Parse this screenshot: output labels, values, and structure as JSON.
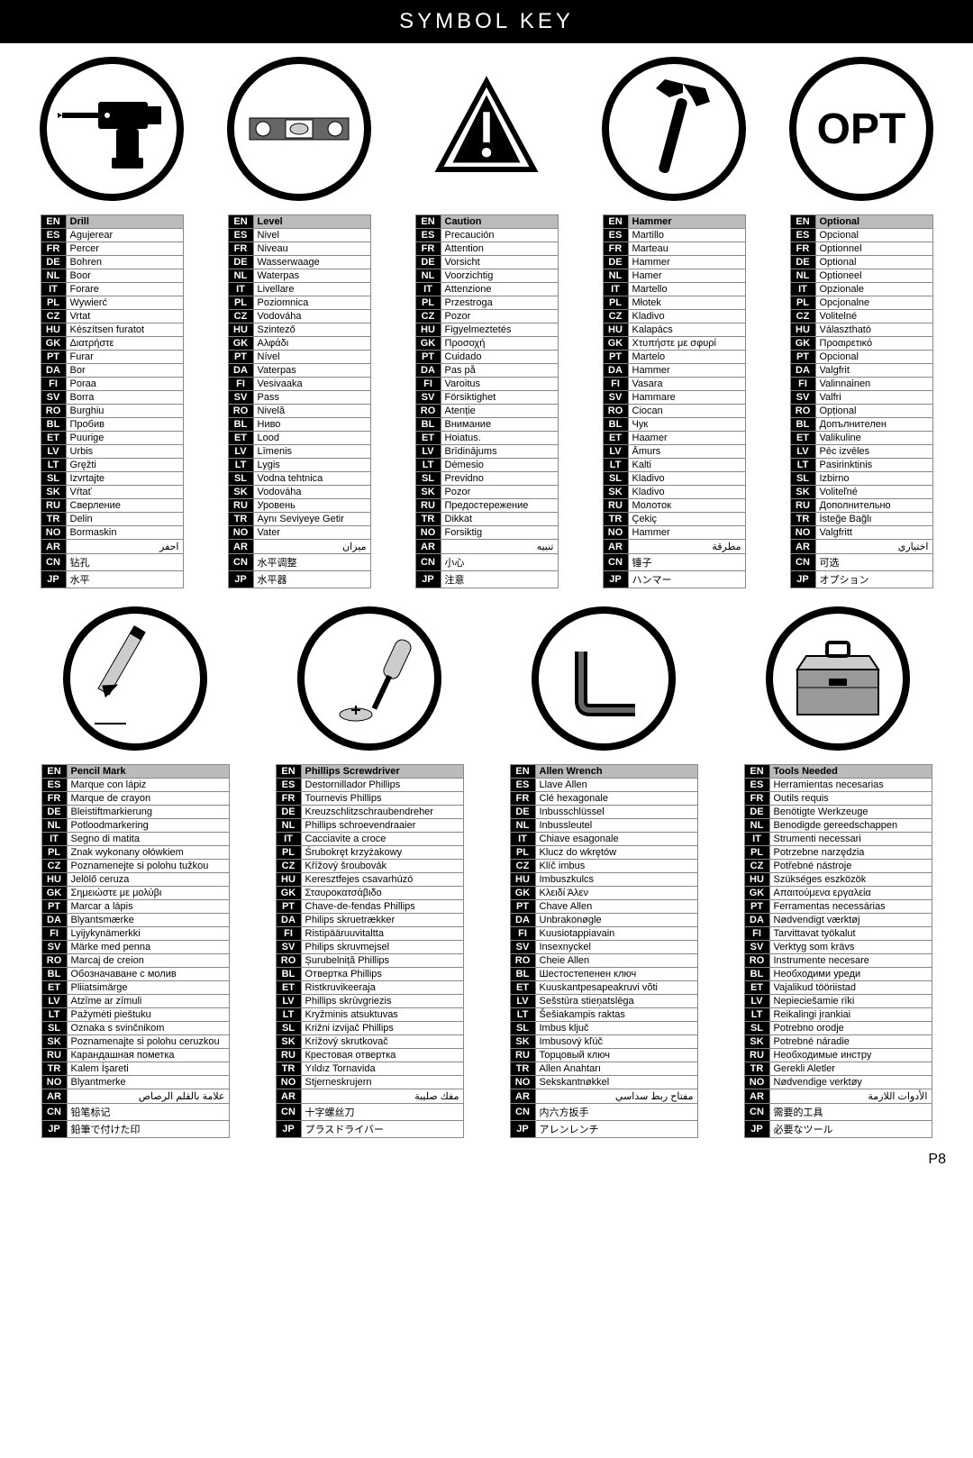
{
  "title": "SYMBOL KEY",
  "footer": "P8",
  "langs": [
    "EN",
    "ES",
    "FR",
    "DE",
    "NL",
    "IT",
    "PL",
    "CZ",
    "HU",
    "GK",
    "PT",
    "DA",
    "FI",
    "SV",
    "RO",
    "BL",
    "ET",
    "LV",
    "LT",
    "SL",
    "SK",
    "RU",
    "TR",
    "NO",
    "AR",
    "CN",
    "JP"
  ],
  "row1": [
    {
      "icon": "drill",
      "vals": [
        "Drill",
        "Agujerear",
        "Percer",
        "Bohren",
        "Boor",
        "Forare",
        "Wywierć",
        "Vrtat",
        "Készítsen furatot",
        "Διατρήστε",
        "Furar",
        "Bor",
        "Poraa",
        "Borra",
        "Burghiu",
        "Пробив",
        "Puurige",
        "Urbis",
        "Gręžti",
        "Izvrtajte",
        "Vŕtať",
        "Сверление",
        "Delin",
        "Bormaskin",
        "احفر",
        "钻孔",
        "水平"
      ]
    },
    {
      "icon": "level",
      "vals": [
        "Level",
        "Nivel",
        "Niveau",
        "Wasserwaage",
        "Waterpas",
        "Livellare",
        "Poziomnica",
        "Vodováha",
        "Szintező",
        "Αλφάδι",
        "Nível",
        "Vaterpas",
        "Vesivaaka",
        "Pass",
        "Nivelă",
        "Ниво",
        "Lood",
        "Līmenis",
        "Lygis",
        "Vodna tehtnica",
        "Vodováha",
        "Уровень",
        "Aynı Seviyeye Getir",
        "Vater",
        "ميزان",
        "水平调整",
        "水平器"
      ]
    },
    {
      "icon": "caution",
      "vals": [
        "Caution",
        "Precaución",
        "Attention",
        "Vorsicht",
        "Voorzichtig",
        "Attenzione",
        "Przestroga",
        "Pozor",
        "Figyelmeztetés",
        "Προσοχή",
        "Cuidado",
        "Pas på",
        "Varoitus",
        "Försiktighet",
        "Atenție",
        "Внимание",
        "Hoiatus.",
        "Brīdinājums",
        "Dėmesio",
        "Previdno",
        "Pozor",
        "Предостережение",
        "Dikkat",
        "Forsiktig",
        "تنبيه",
        "小心",
        "注意"
      ]
    },
    {
      "icon": "hammer",
      "vals": [
        "Hammer",
        "Martillo",
        "Marteau",
        "Hammer",
        "Hamer",
        "Martello",
        "Młotek",
        "Kladivo",
        "Kalapács",
        "Χτυπήστε με σφυρί",
        "Martelo",
        "Hammer",
        "Vasara",
        "Hammare",
        "Ciocan",
        "Чук",
        "Haamer",
        "Āmurs",
        "Kalti",
        "Kladivo",
        "Kladivo",
        "Молоток",
        "Çekiç",
        "Hammer",
        "مطرقة",
        "锤子",
        "ハンマー"
      ]
    },
    {
      "icon": "opt",
      "vals": [
        "Optional",
        "Opcional",
        "Optionnel",
        "Optional",
        "Optioneel",
        "Opzionale",
        "Opcjonalne",
        "Volitelné",
        "Választható",
        "Προαιρετικό",
        "Opcional",
        "Valgfrit",
        "Valinnainen",
        "Valfri",
        "Opțional",
        "Допълнителен",
        "Valikuline",
        "Pēc izvēles",
        "Pasirinktinis",
        "Izbirno",
        "Voliteľné",
        "Дополнительно",
        "İsteğe Bağlı",
        "Valgfritt",
        "اختياري",
        "可选",
        "オプション"
      ]
    }
  ],
  "row2": [
    {
      "icon": "pencil",
      "vals": [
        "Pencil Mark",
        "Marque con lápiz",
        "Marque de crayon",
        "Bleistiftmarkierung",
        "Potloodmarkering",
        "Segno di matita",
        "Znak wykonany ołówkiem",
        "Poznamenejte si polohu tužkou",
        "Jelölő ceruza",
        "Σημειώστε με μολύβι",
        "Marcar a lápis",
        "Blyantsmærke",
        "Lyijykynämerkki",
        "Märke med penna",
        "Marcaj de creion",
        "Обозначаване с молив",
        "Pliiatsimärge",
        "Atzīme ar zīmuli",
        "Pažymėti pieštuku",
        "Oznaka s svinčnikom",
        "Poznamenajte si polohu ceruzkou",
        "Карандашная пометка",
        "Kalem İşareti",
        "Blyantmerke",
        "علامة بالقلم الرصاص",
        "铅笔标记",
        "鉛筆で付けた印"
      ]
    },
    {
      "icon": "phillips",
      "vals": [
        "Phillips Screwdriver",
        "Destornillador Phillips",
        "Tournevis Phillips",
        "Kreuzschlitzschraubendreher",
        "Phillips schroevendraaier",
        "Cacciavite a croce",
        "Śrubokręt krzyżakowy",
        "Křížový šroubovák",
        "Keresztfejes csavarhúzó",
        "Σταυροκατσάβιδο",
        "Chave-de-fendas Phillips",
        "Philips skruetrækker",
        "Ristipääruuvitaltta",
        "Philips skruvmejsel",
        "Șurubelniță Phillips",
        "Отвертка Phillips",
        "Ristkruvikeeraja",
        "Phillips skrūvgriezis",
        "Kryžminis atsuktuvas",
        "Križni izvijač Phillips",
        "Krížový skrutkovač",
        "Крестовая отвертка",
        "Yıldız Tornavida",
        "Stjerneskrujern",
        "مفك صليبة",
        "十字螺丝刀",
        "プラスドライバー"
      ]
    },
    {
      "icon": "allen",
      "vals": [
        "Allen Wrench",
        "Llave Allen",
        "Clé hexagonale",
        "Inbusschlüssel",
        "Inbussleutel",
        "Chiave esagonale",
        "Klucz do wkrętów",
        "Klíč imbus",
        "Imbuszkulcs",
        "Κλειδί Άλεν",
        "Chave Allen",
        "Unbrakonøgle",
        "Kuusiotappiavain",
        "Insexnyckel",
        "Cheie Allen",
        "Шестостепенен ключ",
        "Kuuskantpesapeakruvi võti",
        "Sešstūra stieņatslēga",
        "Šešiakampis raktas",
        "Imbus ključ",
        "Imbusový kľúč",
        "Торцовый ключ",
        "Allen Anahtarı",
        "Sekskantnøkkel",
        "مفتاح ربط سداسي",
        "内六方扳手",
        "アレンレンチ"
      ]
    },
    {
      "icon": "toolbox",
      "vals": [
        "Tools Needed",
        "Herramientas necesarias",
        "Outils requis",
        "Benötigte Werkzeuge",
        "Benodigde gereedschappen",
        "Strumenti necessari",
        "Potrzebne narzędzia",
        "Potřebné nástroje",
        "Szükséges eszközök",
        "Απαιτούμενα εργαλεία",
        "Ferramentas necessárias",
        "Nødvendigt værktøj",
        "Tarvittavat työkalut",
        "Verktyg som krävs",
        "Instrumente necesare",
        "Необходими уреди",
        "Vajalikud tööriistad",
        "Nepieciešamie rīki",
        "Reikalingi įrankiai",
        "Potrebno orodje",
        "Potrebné náradie",
        "Необходимые инстру",
        "Gerekli Aletler",
        "Nødvendige verktøy",
        "الأدوات اللازمة",
        "需要的工具",
        "必要なツール"
      ]
    }
  ],
  "icons": {
    "opt_text": "OPT"
  }
}
